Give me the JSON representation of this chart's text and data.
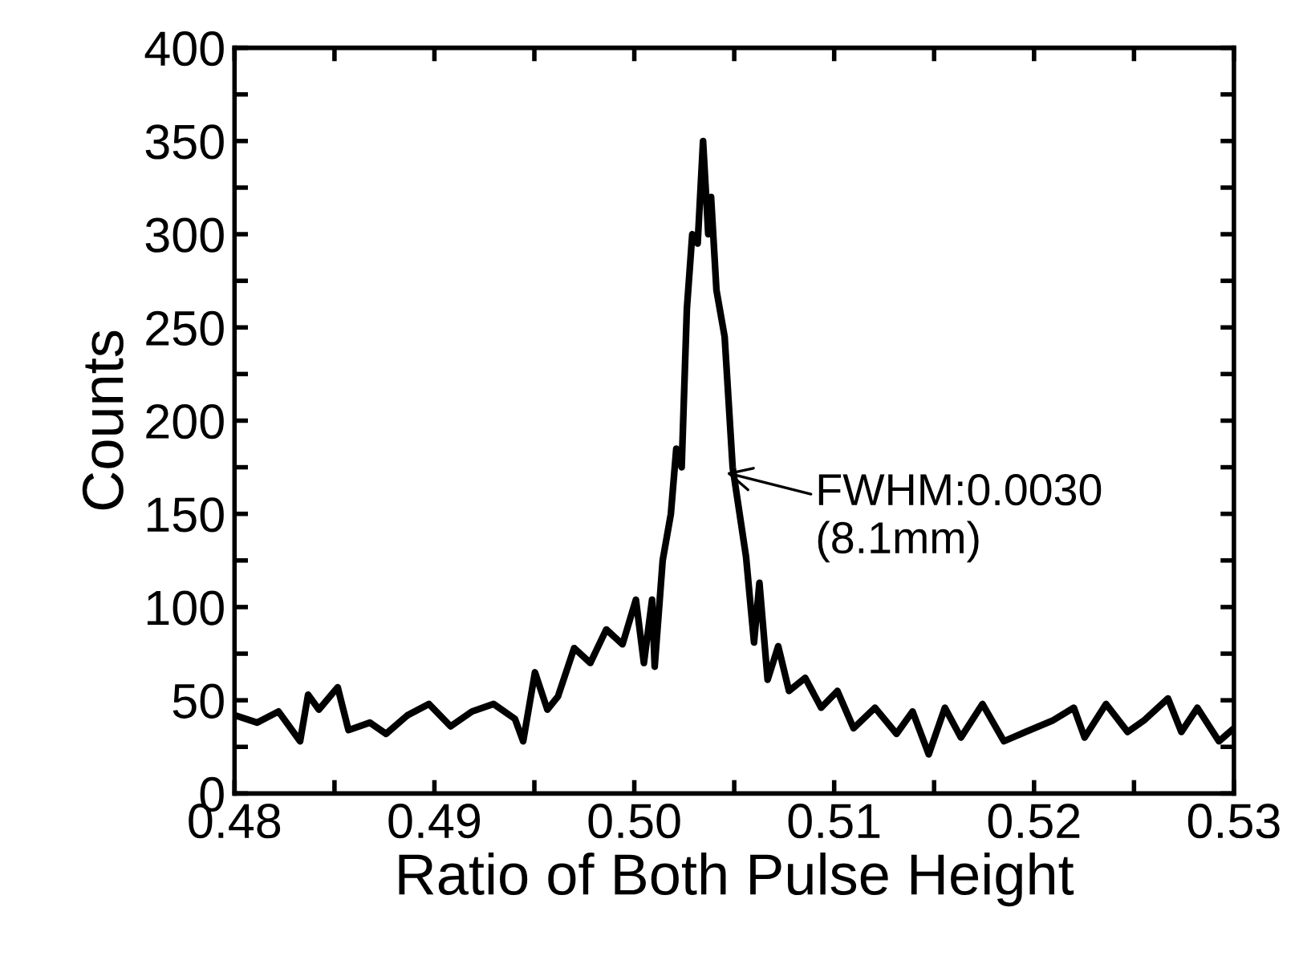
{
  "chart_data": {
    "type": "line",
    "xlabel": "Ratio of Both Pulse Height",
    "ylabel": "Counts",
    "xlim": [
      0.48,
      0.53
    ],
    "ylim": [
      0,
      400
    ],
    "xticks": [
      {
        "value": 0.48,
        "label": "0.48"
      },
      {
        "value": 0.485,
        "label": null
      },
      {
        "value": 0.49,
        "label": "0.49"
      },
      {
        "value": 0.495,
        "label": null
      },
      {
        "value": 0.5,
        "label": "0.50"
      },
      {
        "value": 0.505,
        "label": null
      },
      {
        "value": 0.51,
        "label": "0.51"
      },
      {
        "value": 0.515,
        "label": null
      },
      {
        "value": 0.52,
        "label": "0.52"
      },
      {
        "value": 0.525,
        "label": null
      },
      {
        "value": 0.53,
        "label": "0.53"
      }
    ],
    "yticks": [
      0,
      {
        "value": 25,
        "label": null
      },
      50,
      {
        "value": 75,
        "label": null
      },
      100,
      {
        "value": 125,
        "label": null
      },
      150,
      {
        "value": 175,
        "label": null
      },
      200,
      {
        "value": 225,
        "label": null
      },
      250,
      {
        "value": 275,
        "label": null
      },
      300,
      {
        "value": 325,
        "label": null
      },
      350,
      {
        "value": 375,
        "label": null
      },
      400
    ],
    "grid": false,
    "legend": false,
    "marker": "none",
    "line_style": "solid",
    "series": [
      {
        "color": "#000000",
        "x": [
          0.48,
          0.48113,
          0.4822,
          0.48328,
          0.48368,
          0.48422,
          0.48516,
          0.4857,
          0.48677,
          0.48758,
          0.48866,
          0.48973,
          0.49081,
          0.49188,
          0.49296,
          0.49403,
          0.49444,
          0.49503,
          0.49565,
          0.49618,
          0.49699,
          0.4978,
          0.4986,
          0.49941,
          0.50008,
          0.50048,
          0.50089,
          0.50102,
          0.50142,
          0.50183,
          0.5021,
          0.50237,
          0.50263,
          0.5029,
          0.50317,
          0.50344,
          0.5037,
          0.50384,
          0.50411,
          0.50452,
          0.50492,
          0.50559,
          0.50599,
          0.50626,
          0.50667,
          0.5072,
          0.50774,
          0.50855,
          0.50935,
          0.51016,
          0.51097,
          0.51204,
          0.51312,
          0.51392,
          0.51473,
          0.51554,
          0.51634,
          0.51742,
          0.51849,
          0.51957,
          0.52091,
          0.52199,
          0.52253,
          0.5236,
          0.52468,
          0.52548,
          0.5267,
          0.52737,
          0.52817,
          0.52925,
          0.53
        ],
        "values": [
          42,
          38,
          44,
          28,
          53,
          45,
          57,
          34,
          38,
          32,
          42,
          48,
          36,
          44,
          48,
          40,
          28,
          65,
          45,
          52,
          78,
          70,
          88,
          80,
          104,
          70,
          104,
          68,
          125,
          150,
          185,
          175,
          260,
          300,
          295,
          350,
          300,
          320,
          270,
          245,
          175,
          127,
          81,
          113,
          61,
          79,
          55,
          62,
          46,
          55,
          35,
          46,
          32,
          44,
          21,
          46,
          30,
          48,
          28,
          33,
          39,
          46,
          30,
          48,
          33,
          39,
          51,
          33,
          46,
          28,
          35
        ]
      }
    ],
    "annotations": [
      {
        "text": "FWHM:0.0030\n(8.1mm)",
        "x": 0.5046,
        "y": 172
      }
    ]
  }
}
